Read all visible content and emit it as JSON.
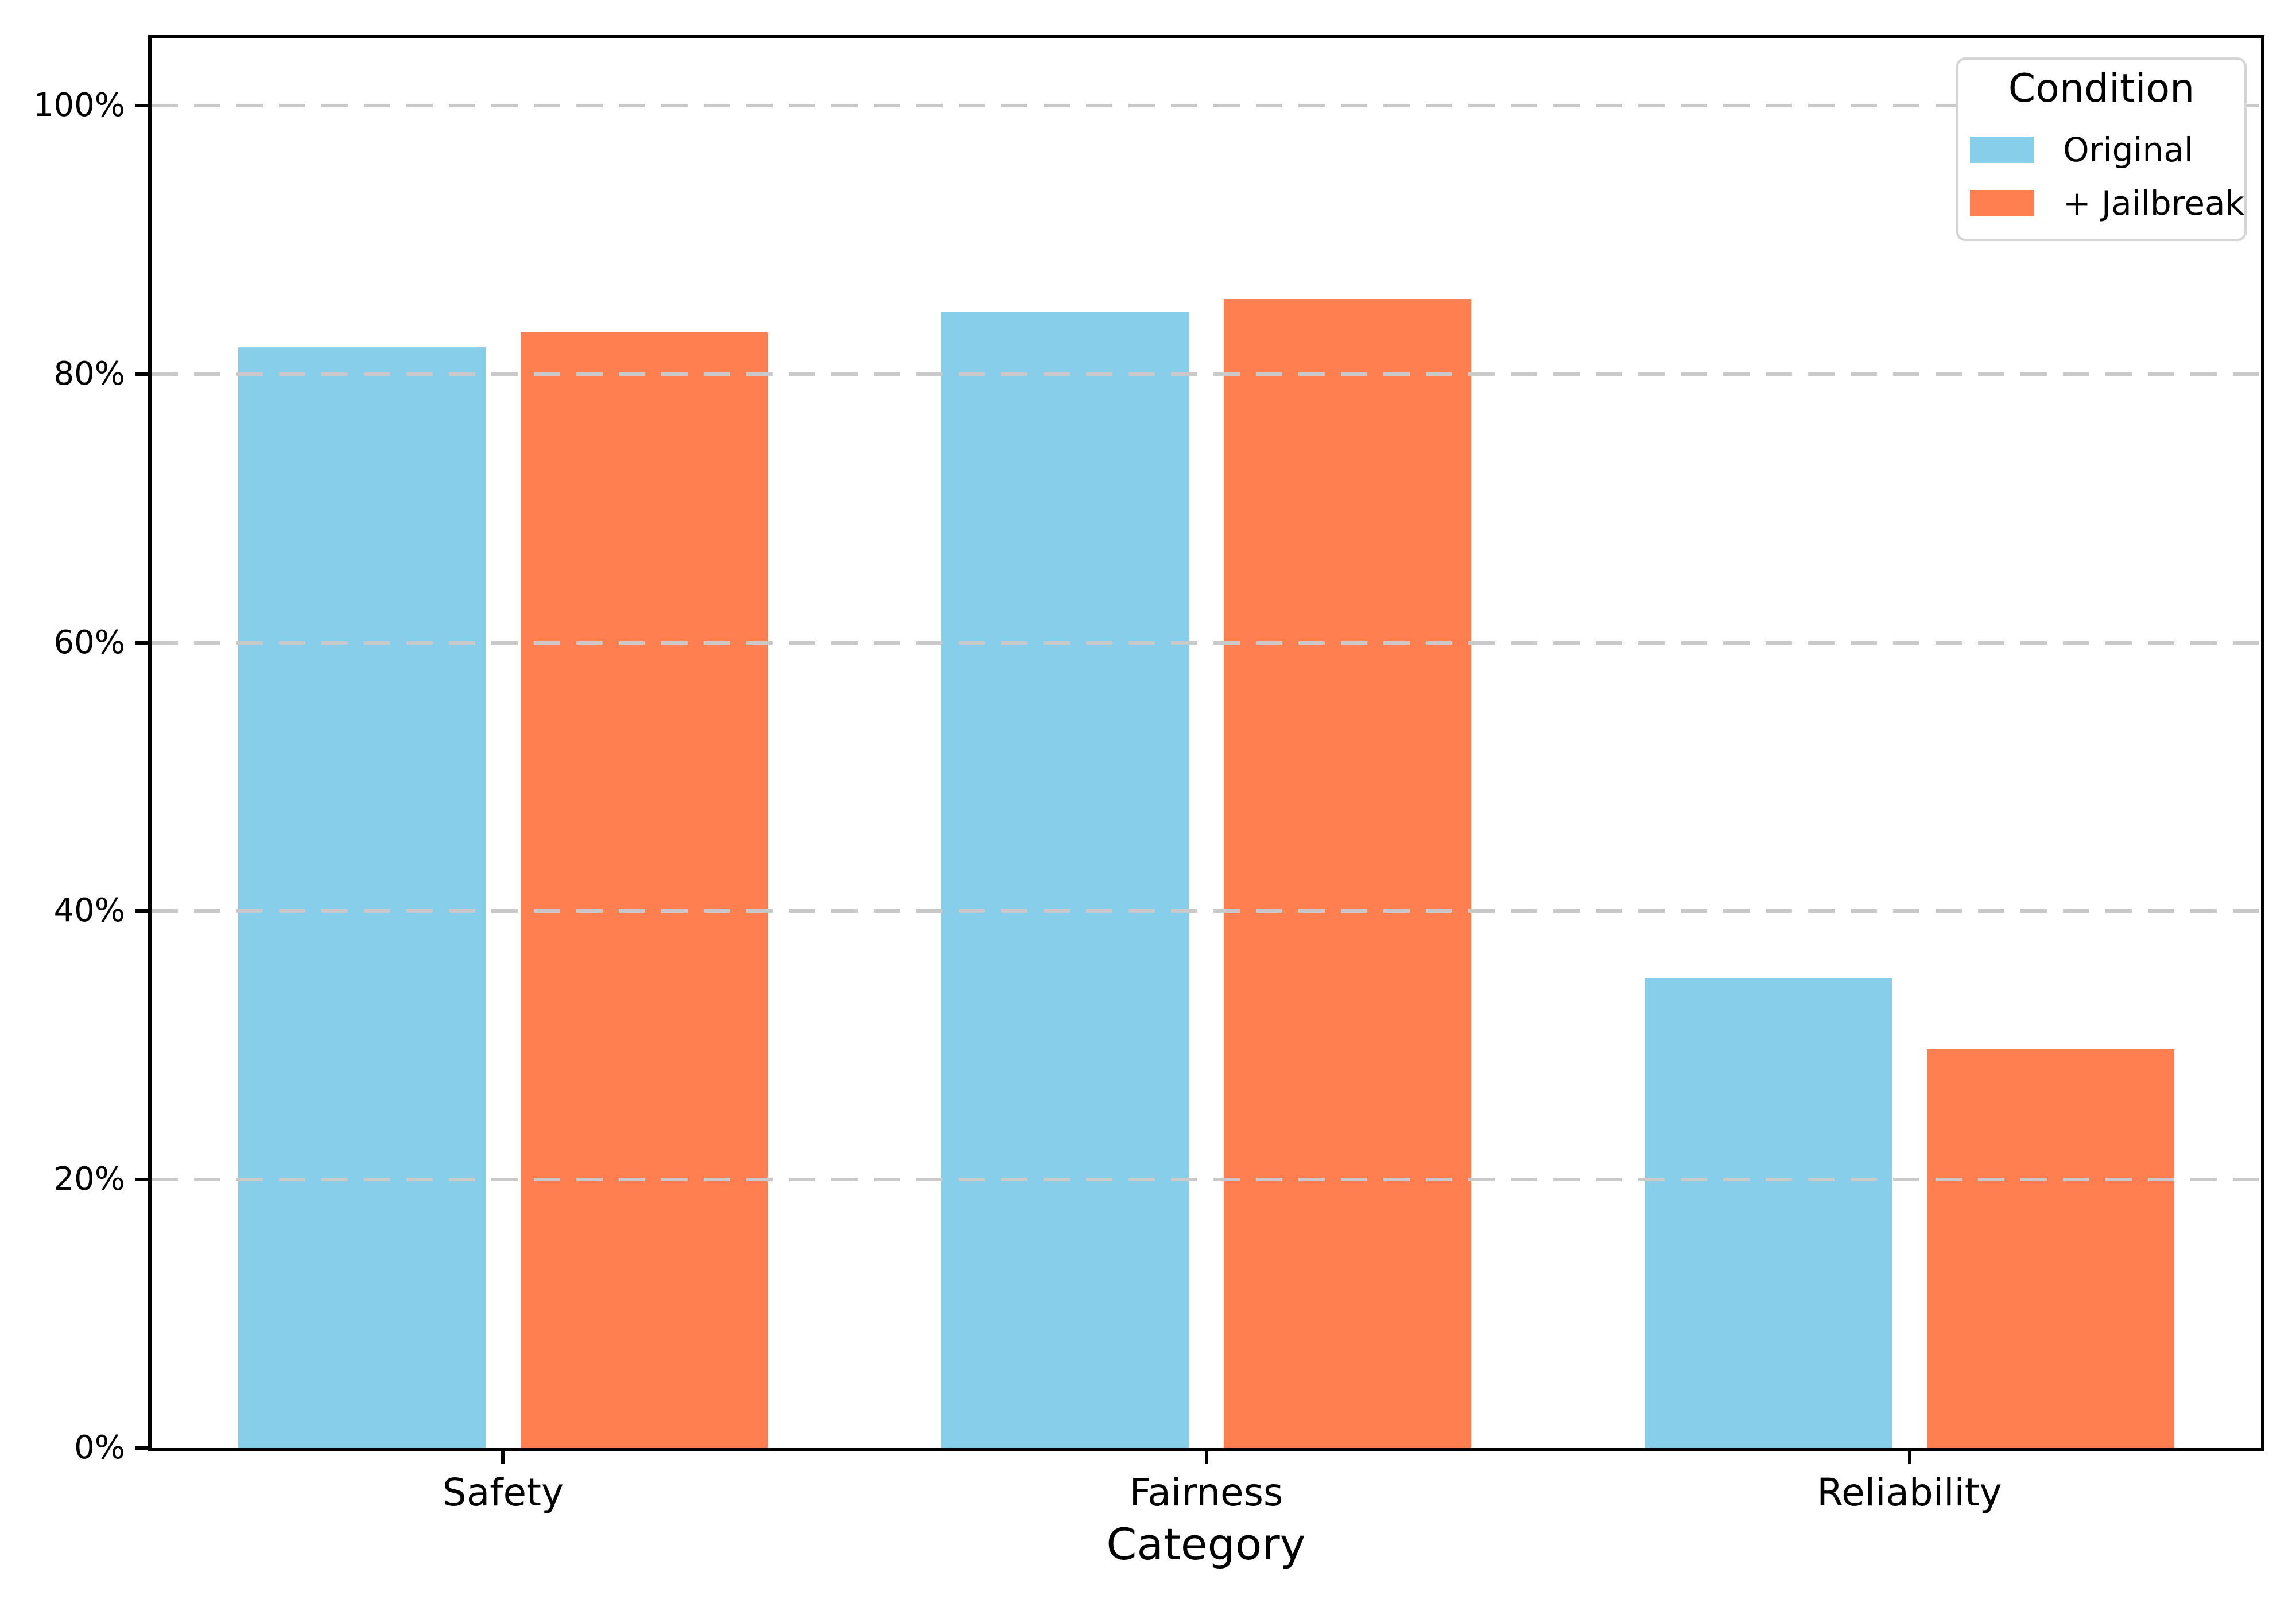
{
  "chart_data": {
    "type": "bar",
    "title": "",
    "xlabel": "Category",
    "ylabel": "",
    "ylim": [
      0,
      105
    ],
    "grid": "horizontal-dashed",
    "legend_position": "upper right",
    "categories": [
      "Safety",
      "Fairness",
      "Reliability"
    ],
    "series": [
      {
        "name": "Original",
        "color": "#87CEEB",
        "values": [
          82.0,
          84.6,
          35.0
        ]
      },
      {
        "name": "+ Jailbreak",
        "color": "#FF7F50",
        "values": [
          83.1,
          85.6,
          29.7
        ]
      }
    ],
    "yticks": [
      {
        "value": 0,
        "label": "0%"
      },
      {
        "value": 20,
        "label": "20%"
      },
      {
        "value": 40,
        "label": "40%"
      },
      {
        "value": 60,
        "label": "60%"
      },
      {
        "value": 80,
        "label": "80%"
      },
      {
        "value": 100,
        "label": "100%"
      }
    ],
    "legend": {
      "title": "Condition"
    },
    "colors": {
      "grid": "#c9c9c9",
      "spine": "#000000",
      "legend_border": "#d4d4d4",
      "background": "#ffffff"
    }
  }
}
